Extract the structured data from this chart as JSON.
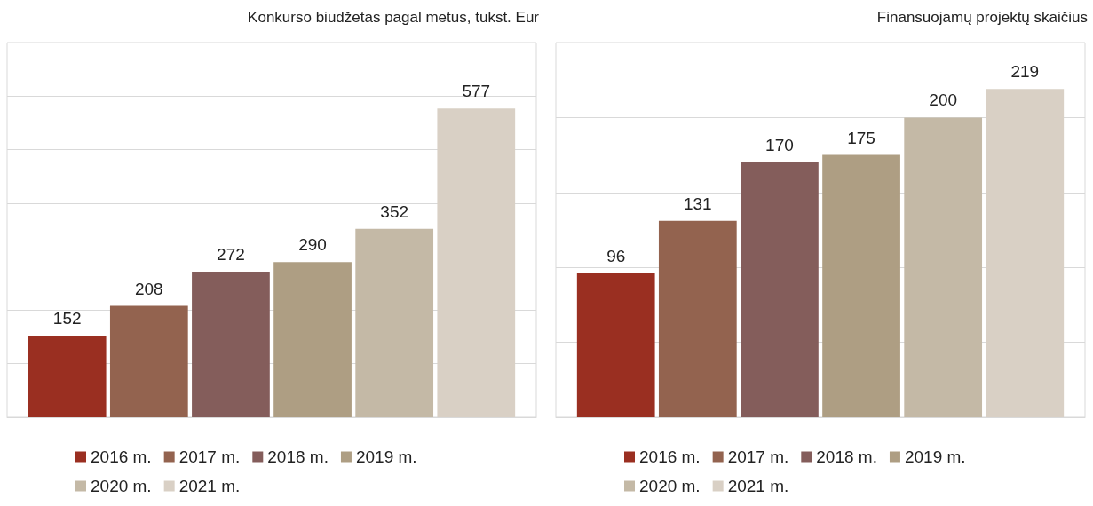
{
  "chart_data": [
    {
      "type": "bar",
      "title": "Konkurso biudžetas pagal metus, tūkst. Eur",
      "categories": [
        null
      ],
      "series": [
        {
          "name": "2016 m.",
          "color": "#9a2f21",
          "values": [
            152
          ]
        },
        {
          "name": "2017 m.",
          "color": "#93634f",
          "values": [
            208
          ]
        },
        {
          "name": "2018 m.",
          "color": "#845d5b",
          "values": [
            272
          ]
        },
        {
          "name": "2019 m.",
          "color": "#ae9e83",
          "values": [
            290
          ]
        },
        {
          "name": "2020 m.",
          "color": "#c4b9a6",
          "values": [
            352
          ]
        },
        {
          "name": "2021 m.",
          "color": "#d9d0c5",
          "values": [
            577
          ]
        }
      ],
      "ylim": [
        0,
        700
      ],
      "yticks": [
        {
          "value": 0,
          "label": null
        },
        {
          "value": 100,
          "label": null
        },
        {
          "value": 200,
          "label": null
        },
        {
          "value": 300,
          "label": null
        },
        {
          "value": 400,
          "label": null
        },
        {
          "value": 500,
          "label": null
        },
        {
          "value": 600,
          "label": null
        },
        {
          "value": 700,
          "label": null
        }
      ],
      "grid": "y",
      "legend": "bottom",
      "data_labels": true,
      "tick_labels": false
    },
    {
      "type": "bar",
      "title": "Finansuojamų projektų skaičius",
      "categories": [
        null
      ],
      "series": [
        {
          "name": "2016 m.",
          "color": "#9a2f21",
          "values": [
            96
          ]
        },
        {
          "name": "2017 m.",
          "color": "#93634f",
          "values": [
            131
          ]
        },
        {
          "name": "2018 m.",
          "color": "#845d5b",
          "values": [
            170
          ]
        },
        {
          "name": "2019 m.",
          "color": "#ae9e83",
          "values": [
            175
          ]
        },
        {
          "name": "2020 m.",
          "color": "#c4b9a6",
          "values": [
            200
          ]
        },
        {
          "name": "2021 m.",
          "color": "#d9d0c5",
          "values": [
            219
          ]
        }
      ],
      "ylim": [
        0,
        250
      ],
      "yticks": [
        {
          "value": 0,
          "label": null
        },
        {
          "value": 50,
          "label": null
        },
        {
          "value": 100,
          "label": null
        },
        {
          "value": 150,
          "label": null
        },
        {
          "value": 200,
          "label": null
        },
        {
          "value": 250,
          "label": null
        }
      ],
      "grid": "y",
      "legend": "bottom",
      "data_labels": true,
      "tick_labels": false
    }
  ]
}
